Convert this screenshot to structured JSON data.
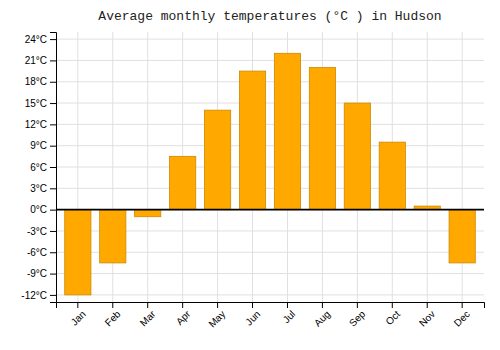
{
  "chart_data": {
    "type": "bar",
    "title": "Average monthly temperatures (°C ) in Hudson",
    "categories": [
      "Jan",
      "Feb",
      "Mar",
      "Apr",
      "May",
      "Jun",
      "Jul",
      "Aug",
      "Sep",
      "Oct",
      "Nov",
      "Dec"
    ],
    "values": [
      -12,
      -7.5,
      -1,
      7.5,
      14,
      19.5,
      22,
      20,
      15,
      9.5,
      0.5,
      -7.5
    ],
    "color": "#FFA800",
    "ylim": [
      -13,
      25
    ],
    "yticks": [
      {
        "value": -12,
        "label": "-12°C"
      },
      {
        "value": -9,
        "label": "-9°C"
      },
      {
        "value": -6,
        "label": "-6°C"
      },
      {
        "value": -3,
        "label": "-3°C"
      },
      {
        "value": 0,
        "label": "0°C"
      },
      {
        "value": 3,
        "label": "3°C"
      },
      {
        "value": 6,
        "label": "6°C"
      },
      {
        "value": 9,
        "label": "9°C"
      },
      {
        "value": 12,
        "label": "12°C"
      },
      {
        "value": 15,
        "label": "15°C"
      },
      {
        "value": 18,
        "label": "18°C"
      },
      {
        "value": 21,
        "label": "21°C"
      },
      {
        "value": 24,
        "label": "24°C"
      }
    ],
    "grid": true
  }
}
